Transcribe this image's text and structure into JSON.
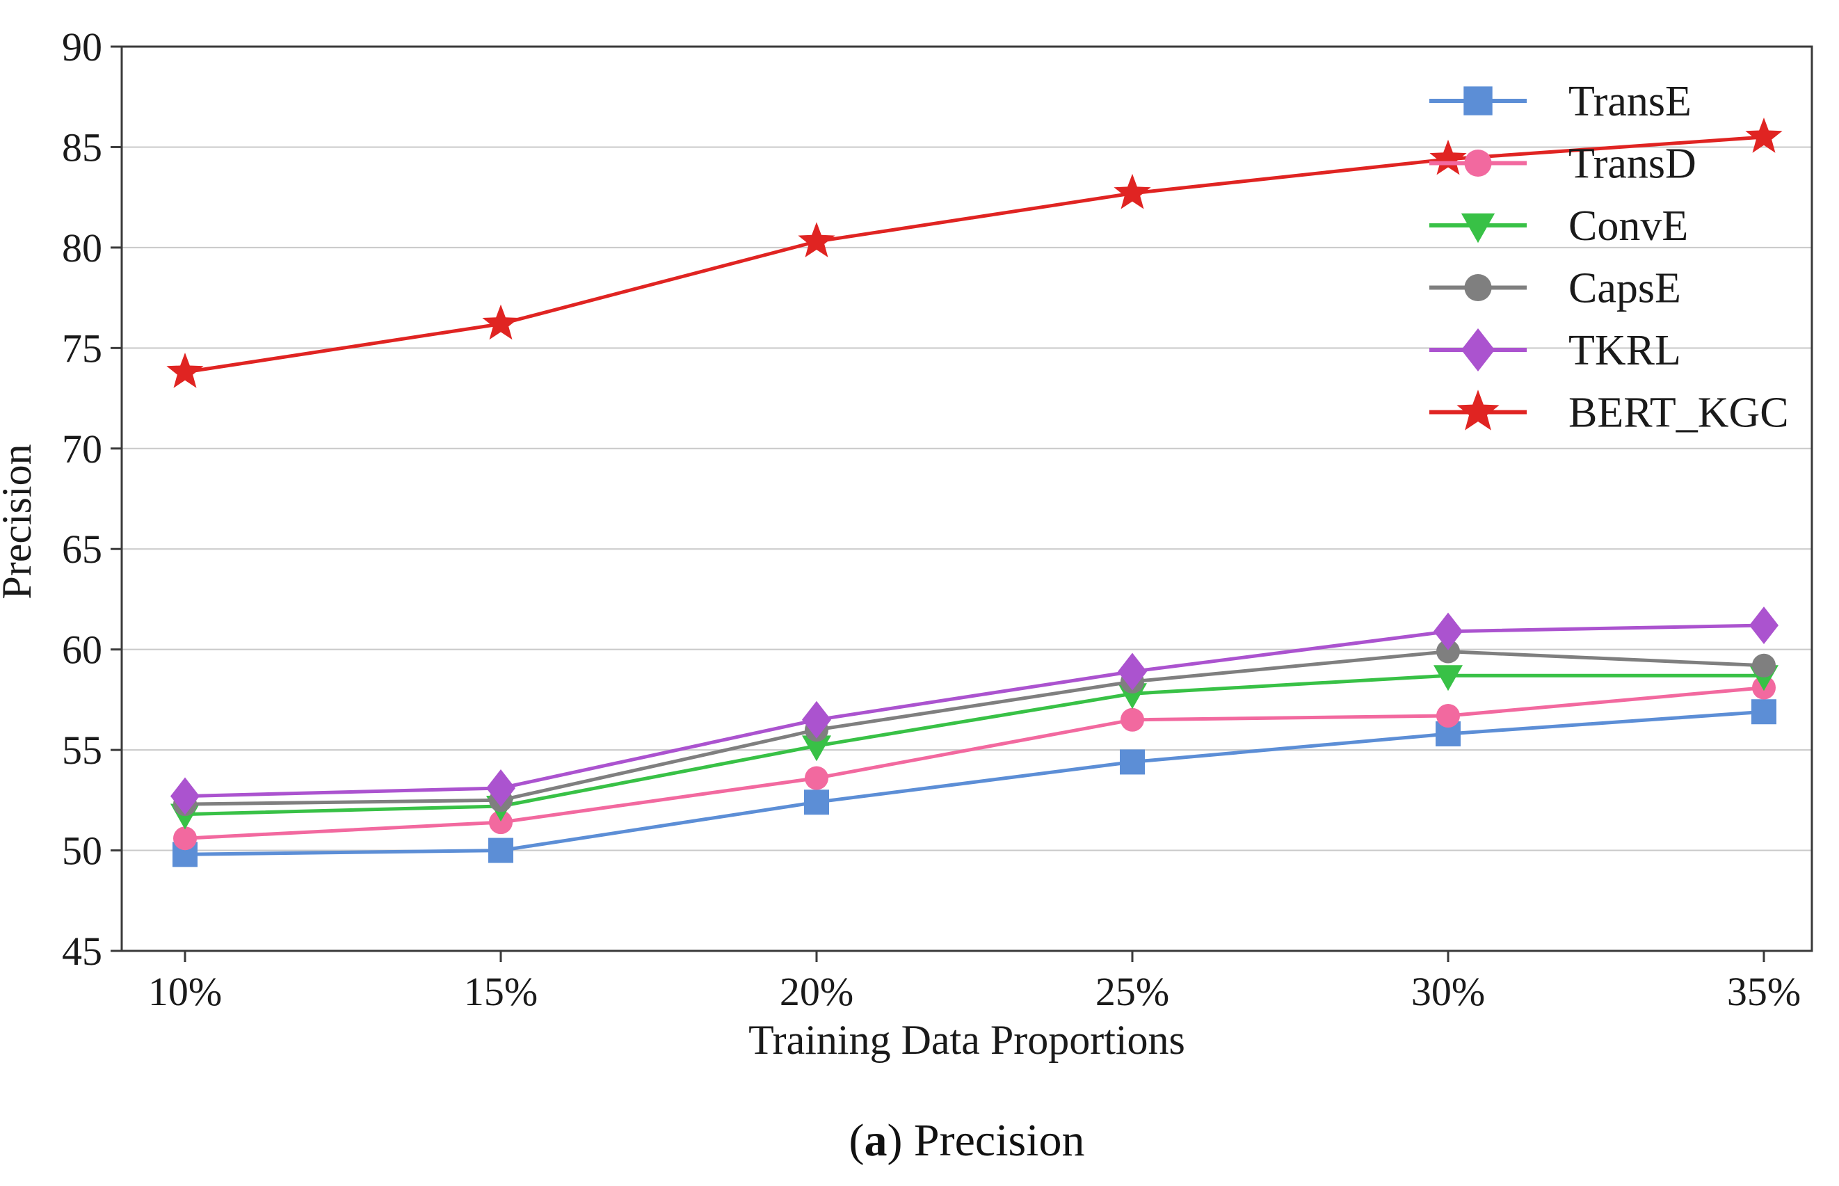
{
  "caption": {
    "open": "(",
    "bold": "a",
    "close_and_text": ") Precision"
  },
  "chart_data": {
    "type": "line",
    "title": "",
    "xlabel": "Training Data Proportions",
    "ylabel": "Precision",
    "categories": [
      "10%",
      "15%",
      "20%",
      "25%",
      "30%",
      "35%"
    ],
    "ylim": [
      45,
      90
    ],
    "yticks": [
      45,
      50,
      55,
      60,
      65,
      70,
      75,
      80,
      85,
      90
    ],
    "grid": true,
    "legend_position": "upper-right",
    "colors": {
      "spine": "#3a3a3a",
      "gridline": "#c9c9c9",
      "text": "#1a1a1a"
    },
    "series": [
      {
        "name": "TransE",
        "marker": "square",
        "color": "#5c8ed6",
        "values": [
          49.8,
          50.0,
          52.4,
          54.4,
          55.8,
          56.9
        ]
      },
      {
        "name": "TransD",
        "marker": "circle",
        "color": "#f2699f",
        "values": [
          50.6,
          51.4,
          53.6,
          56.5,
          56.7,
          58.1
        ]
      },
      {
        "name": "ConvE",
        "marker": "triangle-down",
        "color": "#38c146",
        "values": [
          51.8,
          52.2,
          55.2,
          57.8,
          58.7,
          58.7
        ]
      },
      {
        "name": "CapsE",
        "marker": "circle",
        "color": "#7f7f7f",
        "values": [
          52.3,
          52.5,
          56.0,
          58.4,
          59.9,
          59.2
        ]
      },
      {
        "name": "TKRL",
        "marker": "diamond",
        "color": "#ab53cf",
        "values": [
          52.7,
          53.1,
          56.5,
          58.9,
          60.9,
          61.2
        ]
      },
      {
        "name": "BERT_KGC",
        "marker": "star",
        "color": "#e02422",
        "values": [
          73.8,
          76.2,
          80.3,
          82.7,
          84.4,
          85.5
        ]
      }
    ]
  }
}
